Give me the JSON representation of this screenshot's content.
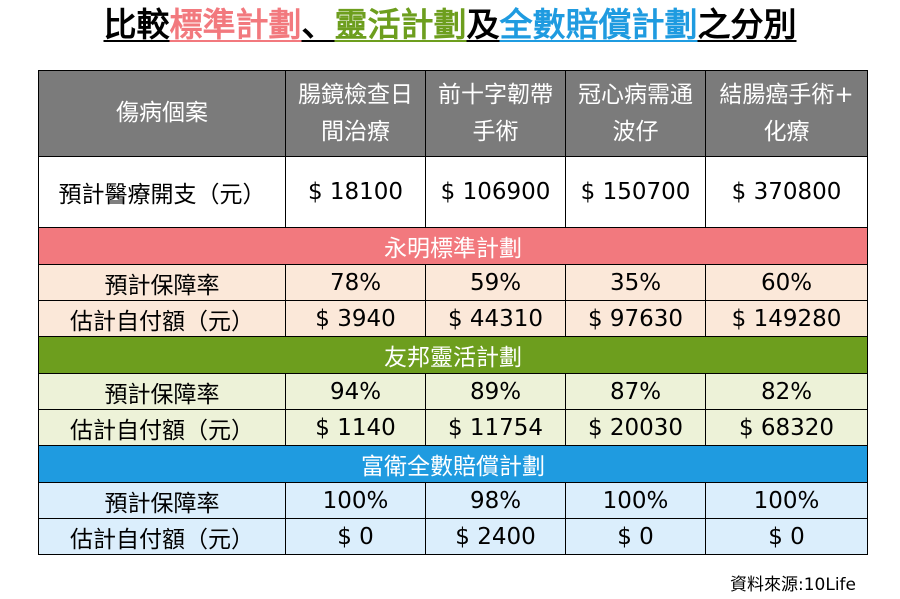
{
  "title": {
    "prefix": "比較",
    "plan_a": "標準計劃",
    "separator": "、",
    "plan_b": "靈活計劃",
    "connector": "及",
    "plan_c": "全數賠償計劃",
    "suffix": "之分別"
  },
  "colors": {
    "pink": "#f2797e",
    "green": "#6d9e1e",
    "blue": "#1f9be0",
    "header_gray": "#7b7b7b"
  },
  "table": {
    "header": {
      "row_label": "傷病個案",
      "cases": [
        [
          "腸鏡檢查日",
          "間治療"
        ],
        [
          "前十字韌帶",
          "手術"
        ],
        [
          "冠心病需通",
          "波仔"
        ],
        [
          "結腸癌手術+",
          "化療"
        ]
      ]
    },
    "cost_row": {
      "label": "預計醫療開支（元）",
      "values": [
        "$ 18100",
        "$ 106900",
        "$ 150700",
        "$ 370800"
      ]
    },
    "sections": [
      {
        "name": "永明標準計劃",
        "rate_label": "預計保障率",
        "rates": [
          "78%",
          "59%",
          "35%",
          "60%"
        ],
        "pay_label": "估計自付額（元）",
        "pays": [
          "$ 3940",
          "$ 44310",
          "$ 97630",
          "$ 149280"
        ]
      },
      {
        "name": "友邦靈活計劃",
        "rate_label": "預計保障率",
        "rates": [
          "94%",
          "89%",
          "87%",
          "82%"
        ],
        "pay_label": "估計自付額（元）",
        "pays": [
          "$ 1140",
          "$ 11754",
          "$ 20030",
          "$ 68320"
        ]
      },
      {
        "name": "富衛全數賠償計劃",
        "rate_label": "預計保障率",
        "rates": [
          "100%",
          "98%",
          "100%",
          "100%"
        ],
        "pay_label": "估計自付額（元）",
        "pays": [
          "$ 0",
          "$ 2400",
          "$ 0",
          "$ 0"
        ]
      }
    ]
  },
  "source": "資料來源:10Life"
}
